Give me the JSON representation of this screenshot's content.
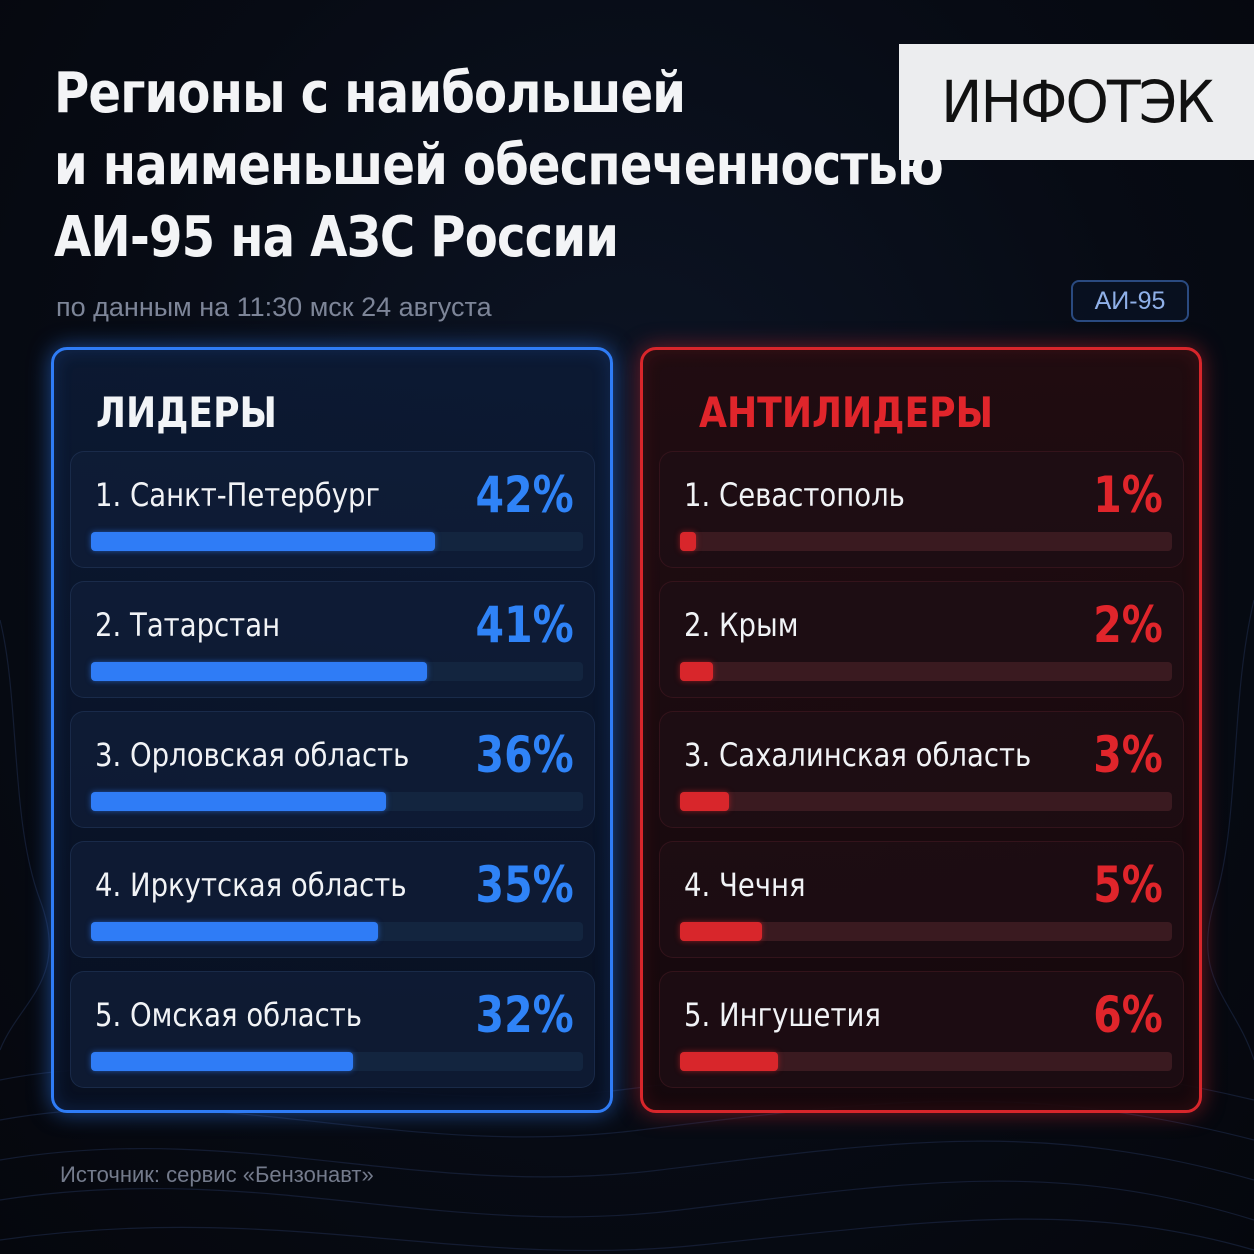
{
  "title_lines": [
    "Регионы с наибольшей",
    "и наименьшей обеспеченностью",
    "АИ-95 на АЗС России"
  ],
  "logo_text": "ИНФОТЭК",
  "subtitle": "по данным на 11:30 мск 24 августа",
  "fuel_badge": "АИ-95",
  "source": "Источник: сервис «Бензонавт»",
  "colors": {
    "leaders_accent": "#2f7cf6",
    "anti_accent": "#d8262b",
    "background": "#070b14"
  },
  "chart_data": [
    {
      "type": "bar",
      "title": "ЛИДЕРЫ",
      "unit": "%",
      "categories": [
        "1. Санкт-Петербург",
        "2. Татарстан",
        "3. Орловская область",
        "4. Иркутская область",
        "5. Омская область"
      ],
      "values": [
        42,
        41,
        36,
        35,
        32
      ],
      "value_labels": [
        "42%",
        "41%",
        "36%",
        "35%",
        "32%"
      ]
    },
    {
      "type": "bar",
      "title": "АНТИЛИДЕРЫ",
      "unit": "%",
      "categories": [
        "1. Севастополь",
        "2. Крым",
        "3. Сахалинская область",
        "4. Чечня",
        "5. Ингушетия"
      ],
      "values": [
        1,
        2,
        3,
        5,
        6
      ],
      "value_labels": [
        "1%",
        "2%",
        "3%",
        "5%",
        "6%"
      ]
    }
  ]
}
